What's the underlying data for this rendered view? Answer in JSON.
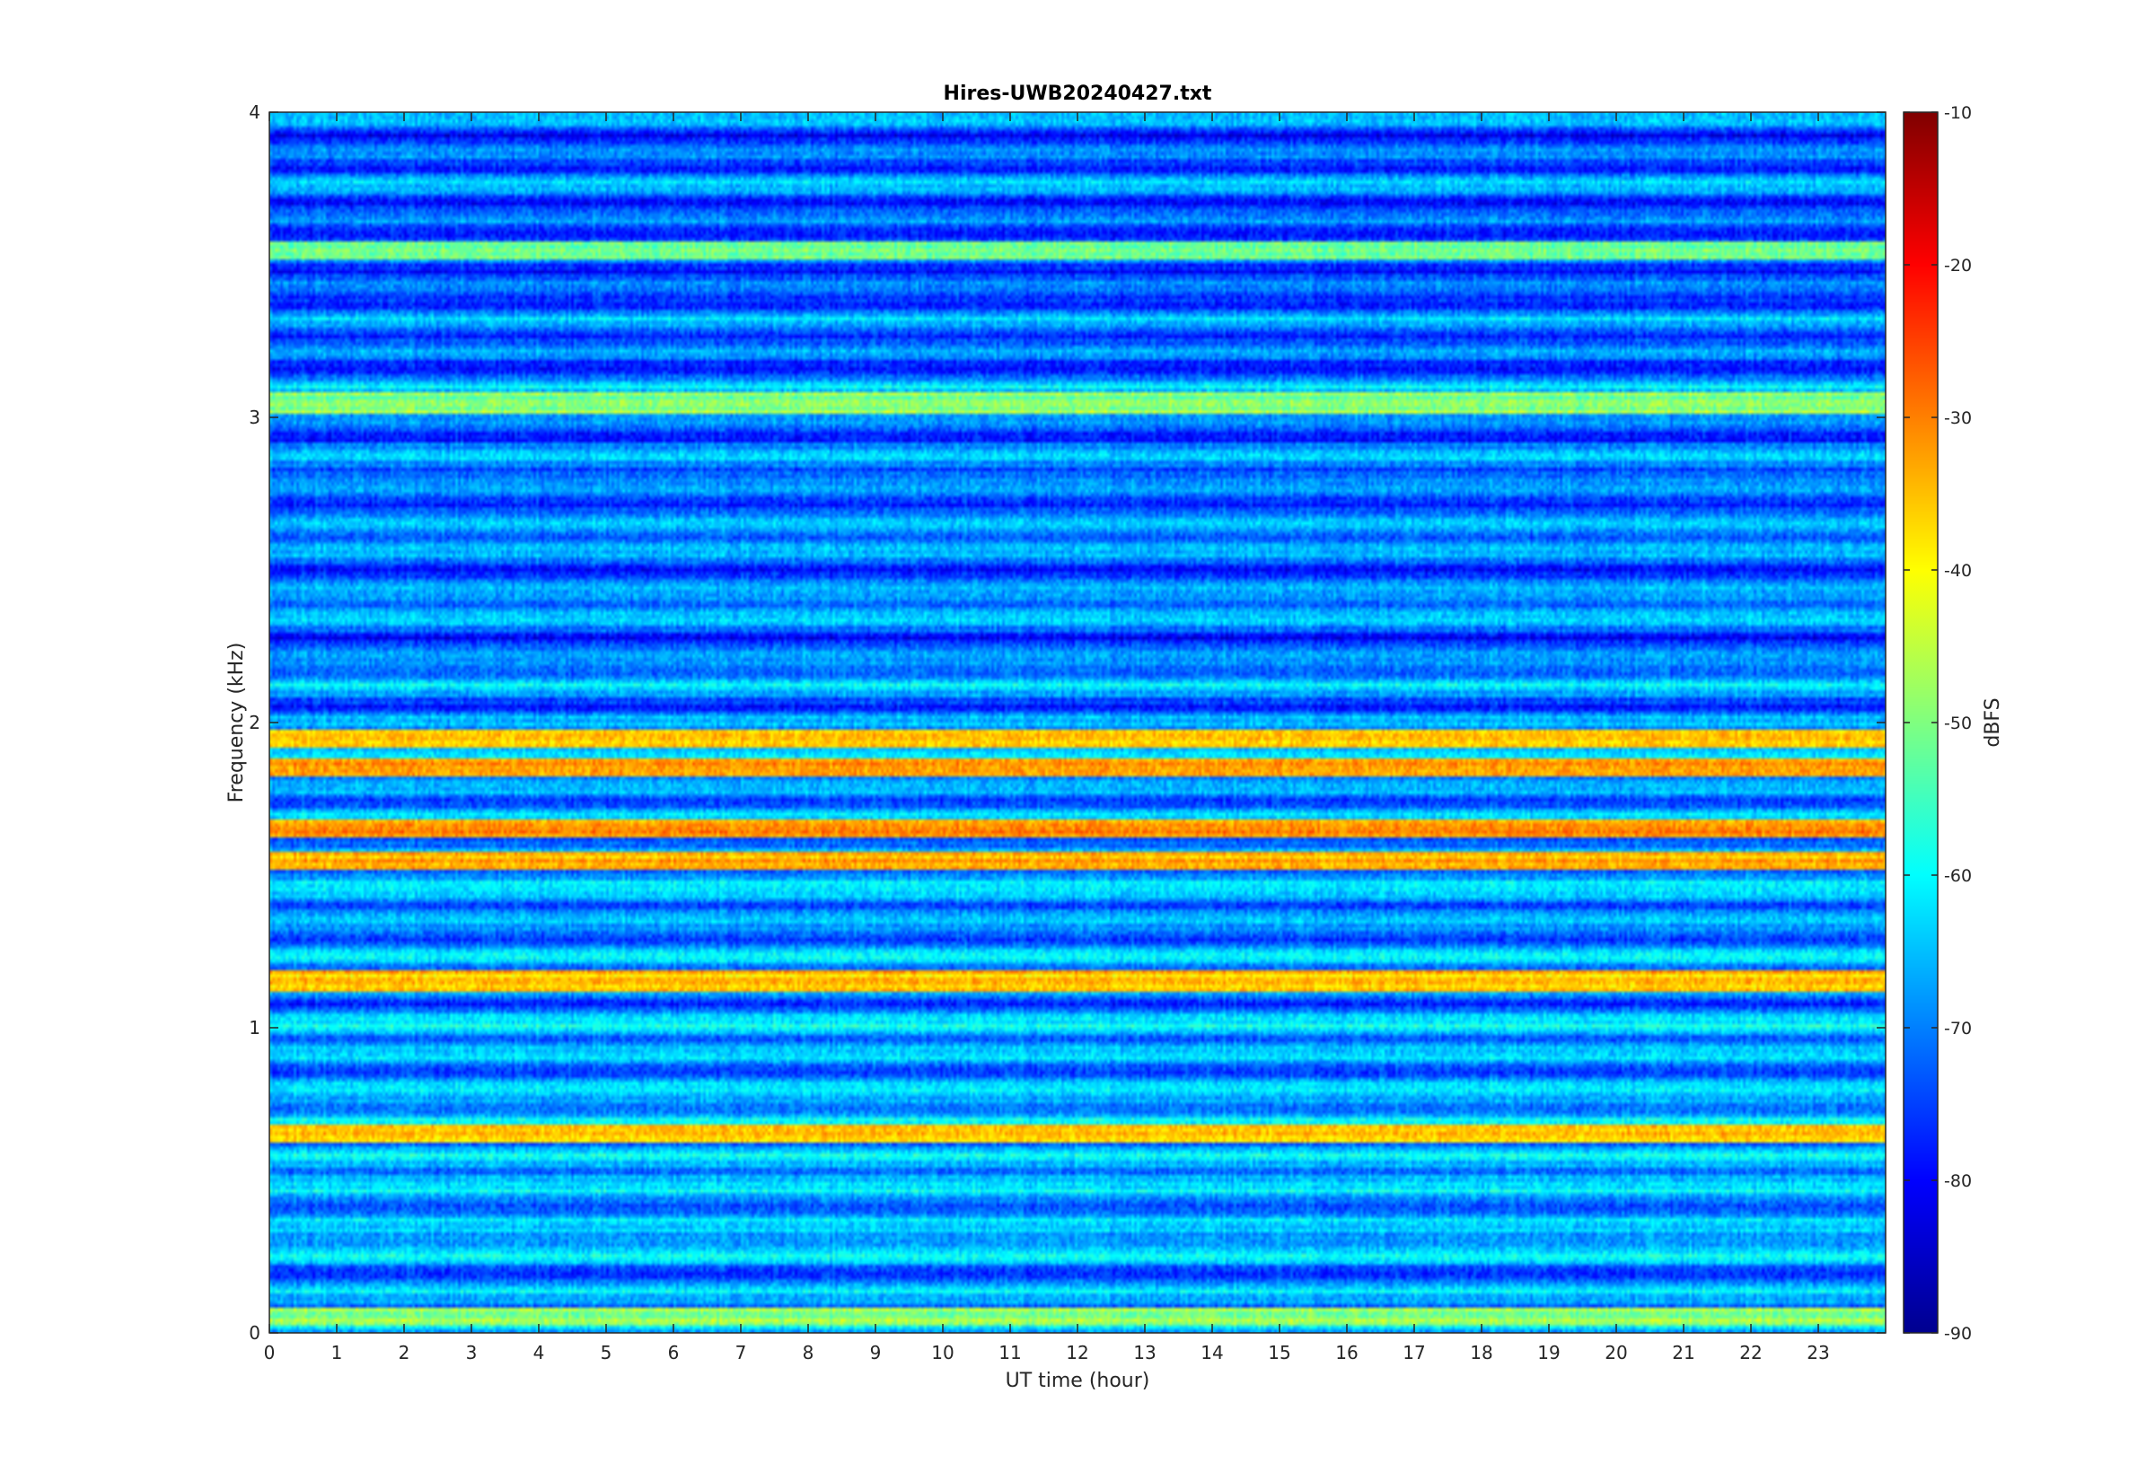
{
  "chart_data": {
    "type": "heatmap",
    "title": "Hires-UWB20240427.txt",
    "xlabel": "UT time (hour)",
    "ylabel": "Frequency (kHz)",
    "xlim": [
      0,
      24
    ],
    "ylim": [
      0,
      4
    ],
    "x_ticks": [
      0,
      1,
      2,
      3,
      4,
      5,
      6,
      7,
      8,
      9,
      10,
      11,
      12,
      13,
      14,
      15,
      16,
      17,
      18,
      19,
      20,
      21,
      22,
      23
    ],
    "y_ticks": [
      0,
      1,
      2,
      3,
      4
    ],
    "colormap": "jet",
    "colorbar": {
      "label": "dBFS",
      "range": [
        -90,
        -10
      ],
      "ticks": [
        -90,
        -80,
        -70,
        -60,
        -50,
        -40,
        -30,
        -20,
        -10
      ]
    },
    "description_bands_khz": [
      {
        "freq": 0.05,
        "level_dbfs": -48
      },
      {
        "freq": 0.65,
        "level_dbfs": -38
      },
      {
        "freq": 1.15,
        "level_dbfs": -35
      },
      {
        "freq": 1.55,
        "level_dbfs": -34
      },
      {
        "freq": 1.65,
        "level_dbfs": -33
      },
      {
        "freq": 1.85,
        "level_dbfs": -32
      },
      {
        "freq": 1.95,
        "level_dbfs": -36
      },
      {
        "freq": 3.05,
        "level_dbfs": -50
      },
      {
        "freq": 3.55,
        "level_dbfs": -52
      }
    ]
  }
}
